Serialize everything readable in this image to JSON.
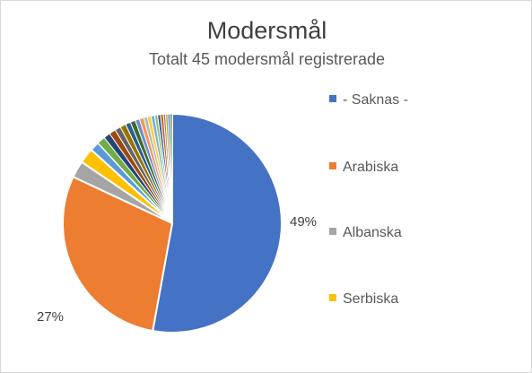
{
  "chart_data": {
    "type": "pie",
    "title": "Modersmål",
    "subtitle": "Totalt 45 modersmål registrerade",
    "legend_position": "right",
    "slices": [
      {
        "label": "- Saknas -",
        "value": 49,
        "color": "#4472c4",
        "data_label": "49%"
      },
      {
        "label": "",
        "value": 27,
        "color": "#ed7d31",
        "data_label": "27%"
      },
      {
        "label": "",
        "value": 2.3,
        "color": "#a5a5a5"
      },
      {
        "label": "",
        "value": 2.1,
        "color": "#ffc000"
      },
      {
        "label": "",
        "value": 1.3,
        "color": "#5b9bd5"
      },
      {
        "label": "",
        "value": 1.1,
        "color": "#70ad47"
      },
      {
        "label": "",
        "value": 0.9,
        "color": "#264478"
      },
      {
        "label": "",
        "value": 0.9,
        "color": "#9e480e"
      },
      {
        "label": "",
        "value": 0.8,
        "color": "#636363"
      },
      {
        "label": "",
        "value": 0.8,
        "color": "#997300"
      },
      {
        "label": "",
        "value": 0.7,
        "color": "#255e91"
      },
      {
        "label": "",
        "value": 0.7,
        "color": "#43682b"
      },
      {
        "label": "",
        "value": 0.6,
        "color": "#698ed0"
      },
      {
        "label": "",
        "value": 0.6,
        "color": "#f1975a"
      },
      {
        "label": "",
        "value": 0.5,
        "color": "#b7b7b7"
      },
      {
        "label": "",
        "value": 0.5,
        "color": "#ffcd33"
      },
      {
        "label": "",
        "value": 0.5,
        "color": "#7cafdd"
      },
      {
        "label": "",
        "value": 0.4,
        "color": "#8cc168"
      },
      {
        "label": "",
        "value": 0.4,
        "color": "#335aa1"
      },
      {
        "label": "",
        "value": 0.4,
        "color": "#d26012"
      },
      {
        "label": "",
        "value": 0.3,
        "color": "#848484"
      },
      {
        "label": "",
        "value": 0.3,
        "color": "#cc9a00"
      },
      {
        "label": "",
        "value": 0.3,
        "color": "#3c7bbe"
      },
      {
        "label": "",
        "value": 0.3,
        "color": "#5b8b39"
      }
    ],
    "legend": [
      {
        "label": "- Saknas -",
        "color": "#4472c4"
      },
      {
        "label": "Arabiska",
        "color": "#ed7d31"
      },
      {
        "label": "Albanska",
        "color": "#a5a5a5"
      },
      {
        "label": "Serbiska",
        "color": "#ffc000"
      }
    ]
  }
}
